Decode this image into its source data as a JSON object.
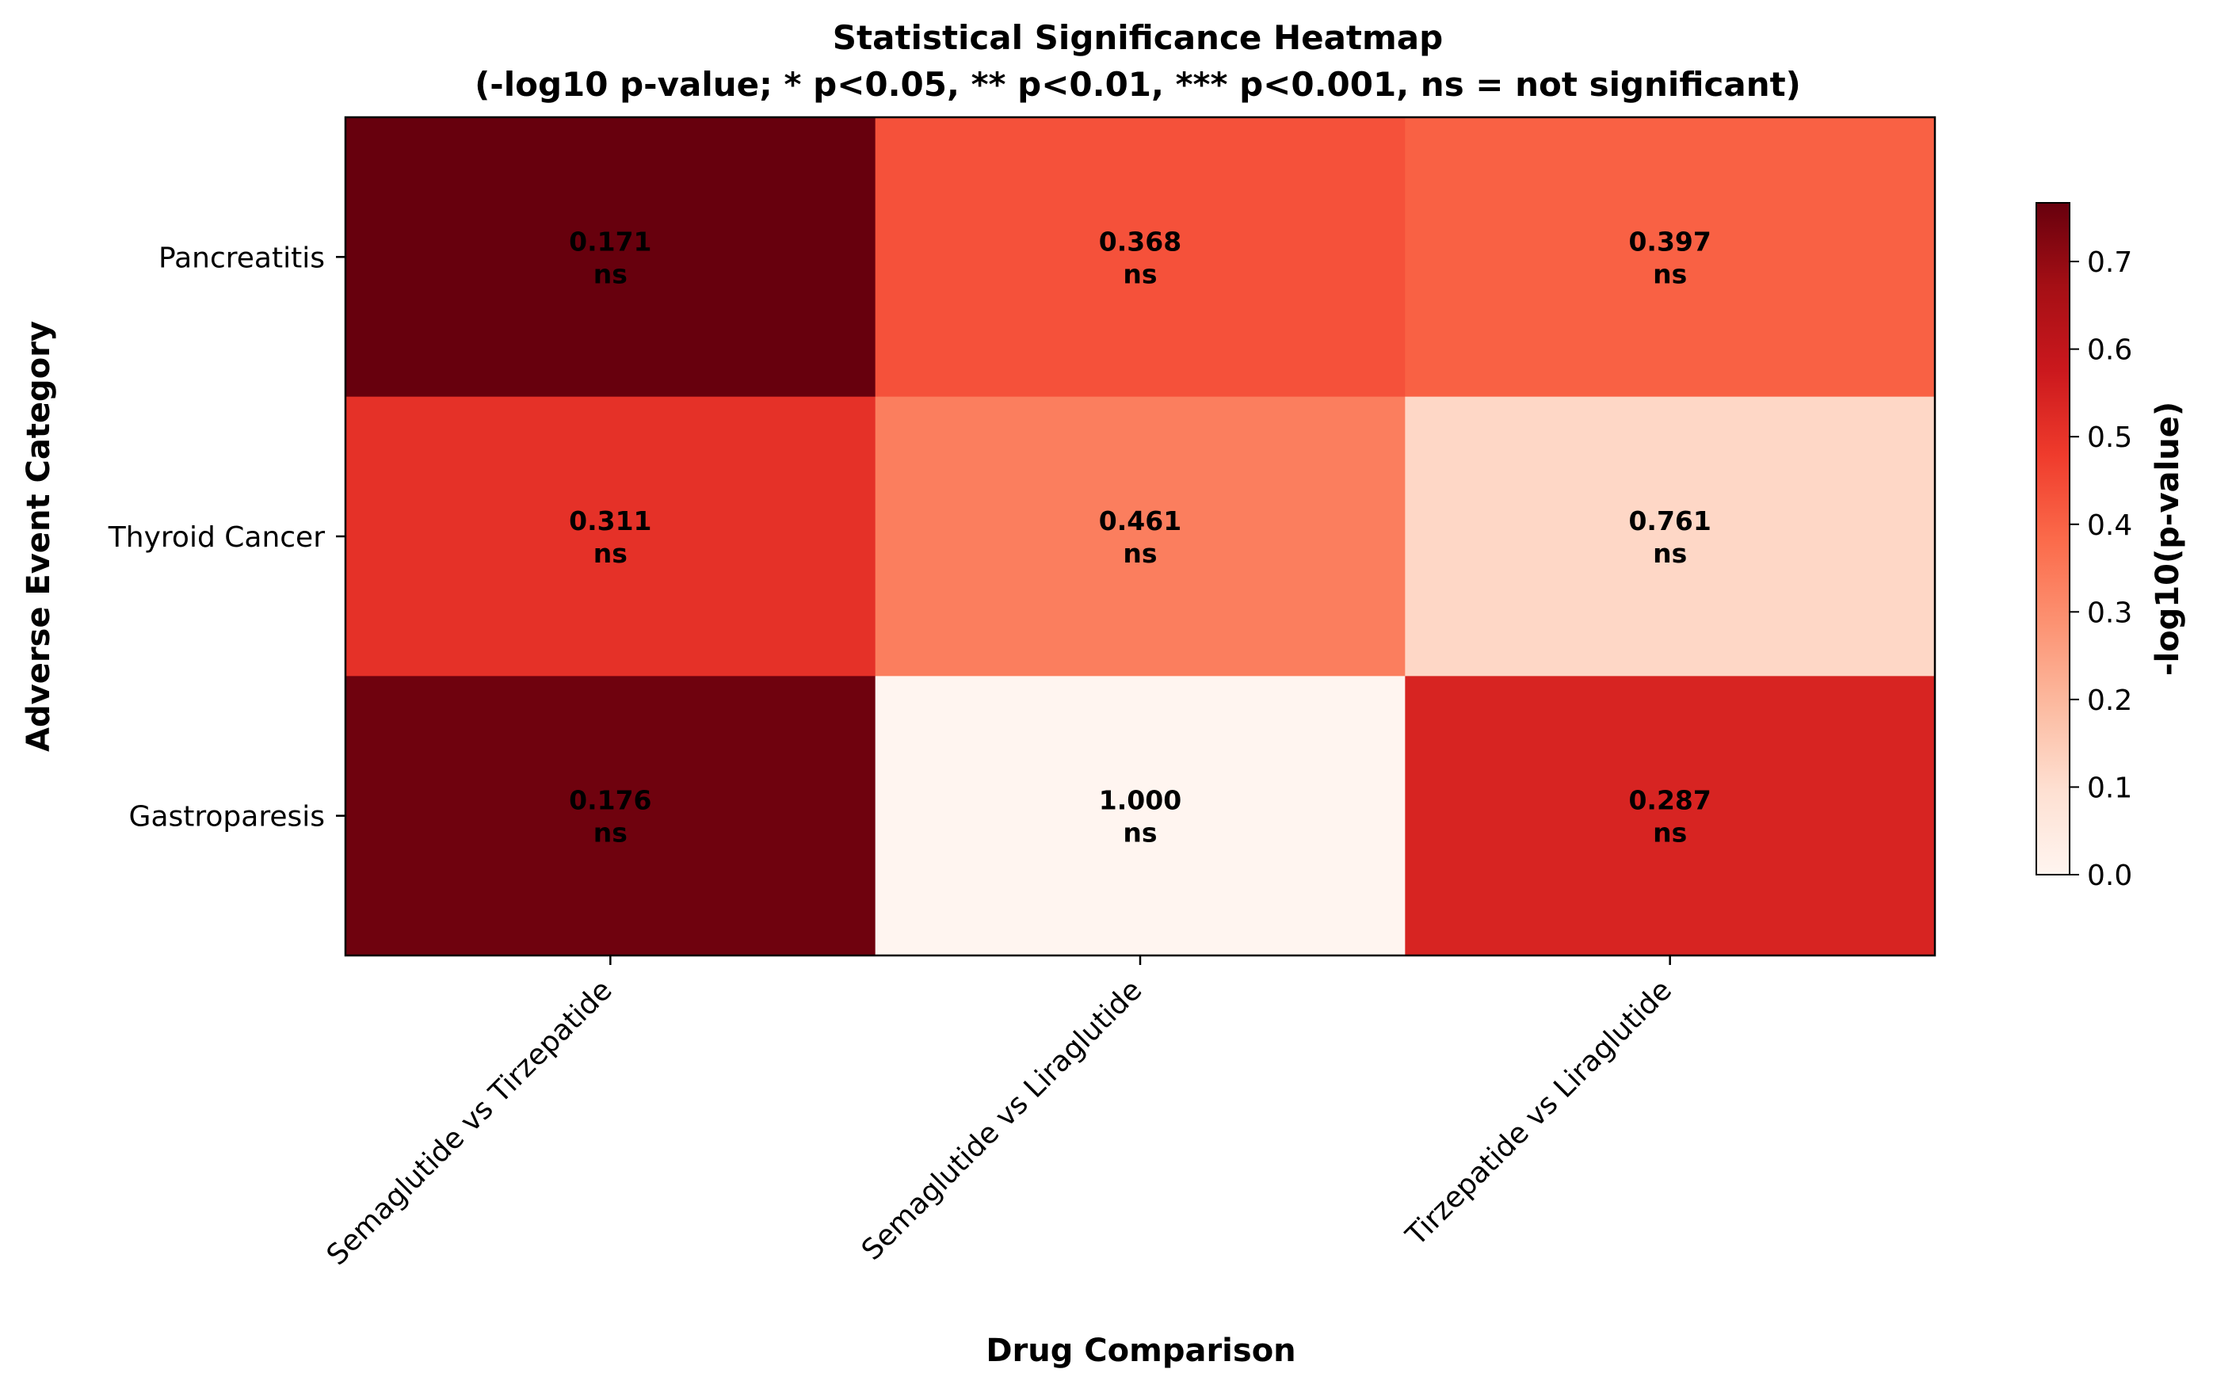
{
  "chart_data": {
    "type": "heatmap",
    "title": "Statistical Significance Heatmap",
    "subtitle": "(-log10 p-value; * p<0.05, ** p<0.01, *** p<0.001, ns = not significant)",
    "xlabel": "Drug Comparison",
    "ylabel": "Adverse Event Category",
    "x_categories": [
      "Semaglutide vs Tirzepatide",
      "Semaglutide vs Liraglutide",
      "Tirzepatide vs Liraglutide"
    ],
    "y_categories": [
      "Pancreatitis",
      "Thyroid Cancer",
      "Gastroparesis"
    ],
    "p_values": [
      [
        0.171,
        0.368,
        0.397
      ],
      [
        0.311,
        0.461,
        0.761
      ],
      [
        0.176,
        1.0,
        0.287
      ]
    ],
    "p_value_labels": [
      [
        "0.171",
        "0.368",
        "0.397"
      ],
      [
        "0.311",
        "0.461",
        "0.761"
      ],
      [
        "0.176",
        "1.000",
        "0.287"
      ]
    ],
    "significance": [
      [
        "ns",
        "ns",
        "ns"
      ],
      [
        "ns",
        "ns",
        "ns"
      ],
      [
        "ns",
        "ns",
        "ns"
      ]
    ],
    "colorbar": {
      "label": "-log10(p-value)",
      "range": [
        0,
        0.767
      ],
      "ticks": [
        "0.0",
        "0.1",
        "0.2",
        "0.3",
        "0.4",
        "0.5",
        "0.6",
        "0.7"
      ],
      "colormap": "Reds"
    }
  }
}
